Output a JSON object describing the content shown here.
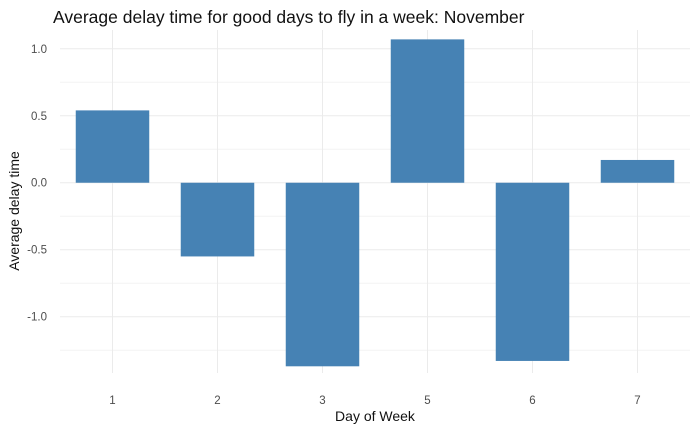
{
  "chart_data": {
    "type": "bar",
    "title": "Average delay time for good days to fly in a week: November",
    "xlabel": "Day of Week",
    "ylabel": "Average delay time",
    "categories": [
      "1",
      "2",
      "3",
      "5",
      "6",
      "7"
    ],
    "values": [
      0.54,
      -0.55,
      -1.37,
      1.07,
      -1.33,
      0.17
    ],
    "ylim": [
      -1.42,
      1.14
    ],
    "yticks": [
      1.0,
      0.5,
      0.0,
      -0.5,
      -1.0
    ],
    "ytick_labels": [
      "1.0",
      "0.5",
      "0.0",
      "-0.5",
      "-1.0"
    ],
    "bar_color": "#4682b4",
    "grid": true,
    "legend": false
  }
}
